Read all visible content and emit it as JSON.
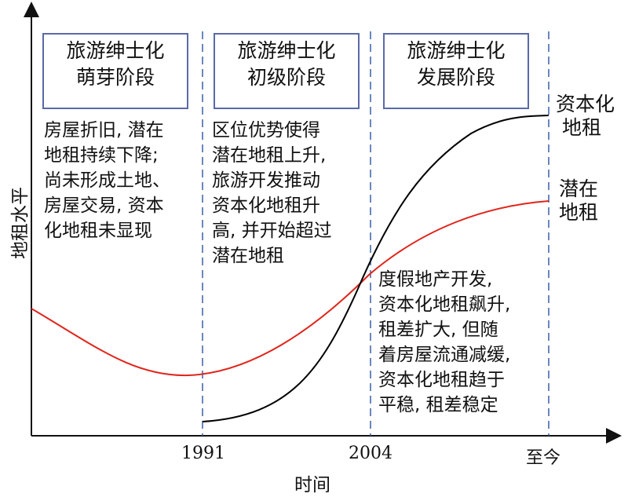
{
  "axes": {
    "y_label": "地租水平",
    "x_label": "时间",
    "ticks": [
      "1991",
      "2004",
      "至今"
    ]
  },
  "stages": [
    {
      "line1": "旅游绅士化",
      "line2": "萌芽阶段"
    },
    {
      "line1": "旅游绅士化",
      "line2": "初级阶段"
    },
    {
      "line1": "旅游绅士化",
      "line2": "发展阶段"
    }
  ],
  "descriptions": {
    "stage1": [
      "房屋折旧, 潜在",
      "地租持续下降;",
      "尚未形成土地、",
      "房屋交易, 资本",
      "化地租未显现"
    ],
    "stage2": [
      "区位优势使得",
      "潜在地租上升,",
      "旅游开发推动",
      "资本化地租升",
      "高, 并开始超过",
      "潜在地租"
    ],
    "stage3": [
      "度假地产开发,",
      "资本化地租飙升,",
      "租差扩大, 但随",
      "着房屋流通减缓,",
      "资本化地租趋于",
      "平稳, 租差稳定"
    ]
  },
  "curves": {
    "capitalized": {
      "line1": "资本化",
      "line2": "地租",
      "color": "#000000"
    },
    "potential": {
      "line1": "潜在",
      "line2": "地租",
      "color": "#e0251b"
    }
  },
  "colors": {
    "box_border": "#5a6aa8",
    "divider": "#3a5fa8"
  }
}
